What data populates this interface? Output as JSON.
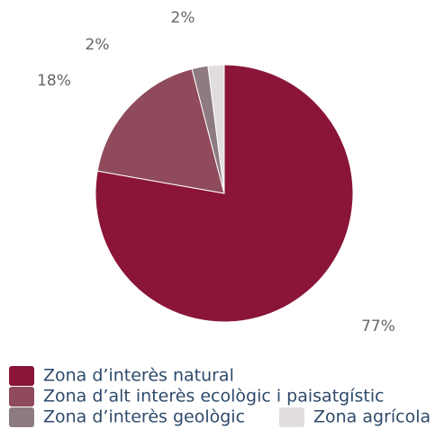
{
  "chart_data": {
    "type": "pie",
    "categories": [
      "Zona d’interès natural",
      "Zona d’alt interès ecològic i paisatgístic",
      "Zona d’interès geològic",
      "Zona agrícola"
    ],
    "values": [
      77,
      18,
      2,
      2
    ],
    "value_labels": [
      "77%",
      "18%",
      "2%",
      "2%"
    ],
    "colors": [
      "#8a1538",
      "#8f4b5c",
      "#8e7b82",
      "#e1dddf"
    ]
  }
}
